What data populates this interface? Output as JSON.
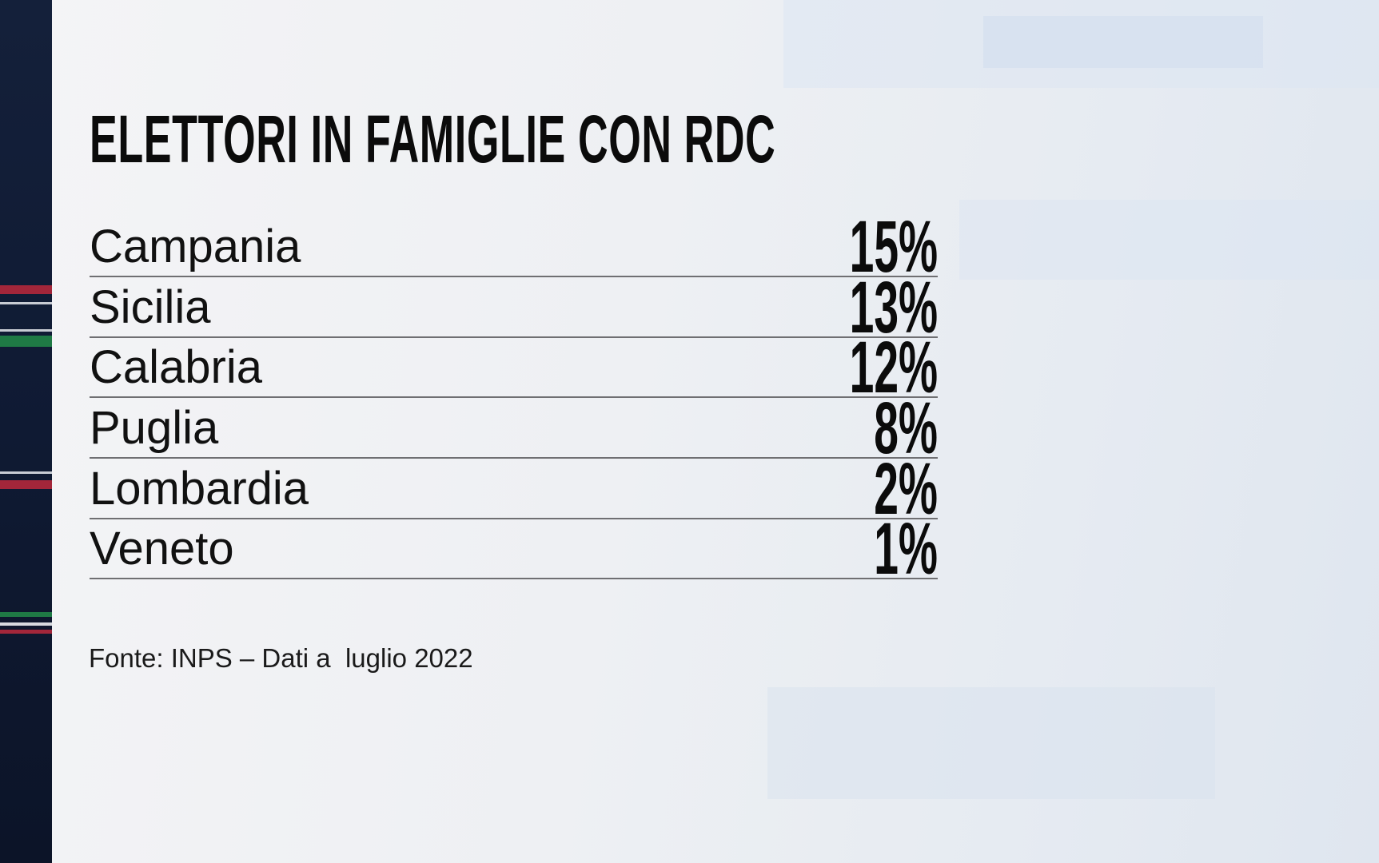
{
  "chart_data": {
    "type": "table",
    "title": "ELETTORI IN FAMIGLIE CON RDC",
    "rows": [
      {
        "label": "Campania",
        "value": "15%"
      },
      {
        "label": "Sicilia",
        "value": "13%"
      },
      {
        "label": "Calabria",
        "value": "12%"
      },
      {
        "label": "Puglia",
        "value": "8%"
      },
      {
        "label": "Lombardia",
        "value": "2%"
      },
      {
        "label": "Veneto",
        "value": "1%"
      }
    ],
    "source": "Fonte: INPS – Dati a  luglio 2022"
  },
  "colors": {
    "stripe_red": "#a3263a",
    "stripe_green": "#1f7a45",
    "stripe_white": "#c8ccd4",
    "sidebar": "#111c35"
  }
}
